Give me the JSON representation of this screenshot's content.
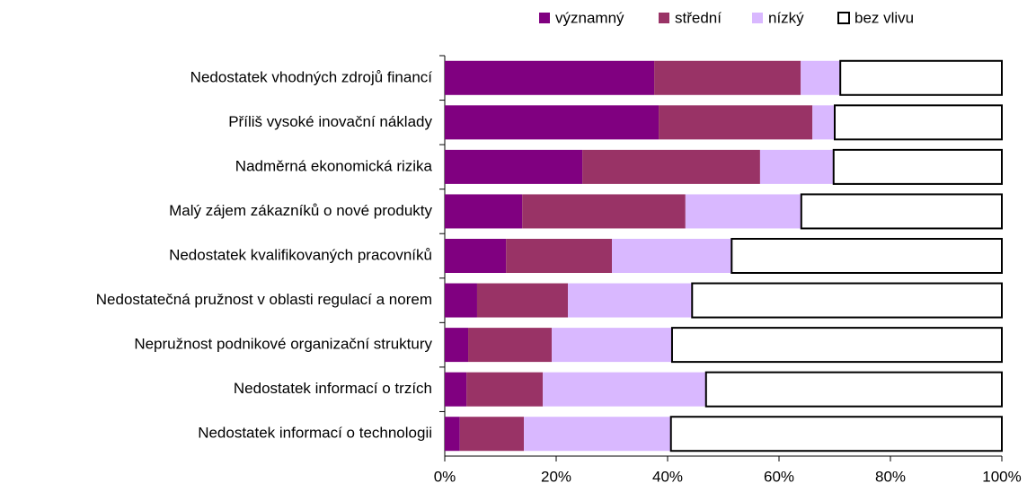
{
  "chart_data": {
    "type": "stacked-barh",
    "categories": [
      "Nedostatek vhodných zdrojů financí",
      "Příliš vysoké inovační náklady",
      "Nadměrná ekonomická rizika",
      "Malý zájem zákazníků o nové produkty",
      "Nedostatek kvalifikovaných pracovníků",
      "Nedostatečná pružnost v oblasti regulací a norem",
      "Nepružnost podnikové organizační struktury",
      "Nedostatek informací o trzích",
      "Nedostatek informací o technologii"
    ],
    "series": [
      {
        "name": "významný",
        "color": "#800080",
        "values": [
          37.6,
          38.4,
          24.7,
          13.9,
          11.0,
          5.8,
          4.2,
          3.9,
          2.7
        ]
      },
      {
        "name": "střední",
        "color": "#993366",
        "values": [
          26.3,
          27.6,
          31.9,
          29.3,
          19.0,
          16.3,
          15.0,
          13.7,
          11.5
        ]
      },
      {
        "name": "nízký",
        "color": "#d9b8ff",
        "values": [
          7.1,
          4.0,
          13.2,
          20.8,
          21.5,
          22.3,
          21.6,
          29.3,
          26.4
        ]
      },
      {
        "name": "bez vlivu",
        "color": "#ffffff",
        "values": [
          29.0,
          30.0,
          30.2,
          36.0,
          48.5,
          55.6,
          59.2,
          53.1,
          59.4
        ]
      }
    ],
    "xlim": [
      0,
      100
    ],
    "xticks": [
      {
        "value": 0,
        "label": "0%"
      },
      {
        "value": 20,
        "label": "20%"
      },
      {
        "value": 40,
        "label": "40%"
      },
      {
        "value": 60,
        "label": "60%"
      },
      {
        "value": 80,
        "label": "80%"
      },
      {
        "value": 100,
        "label": "100%"
      }
    ],
    "legend": "top"
  }
}
